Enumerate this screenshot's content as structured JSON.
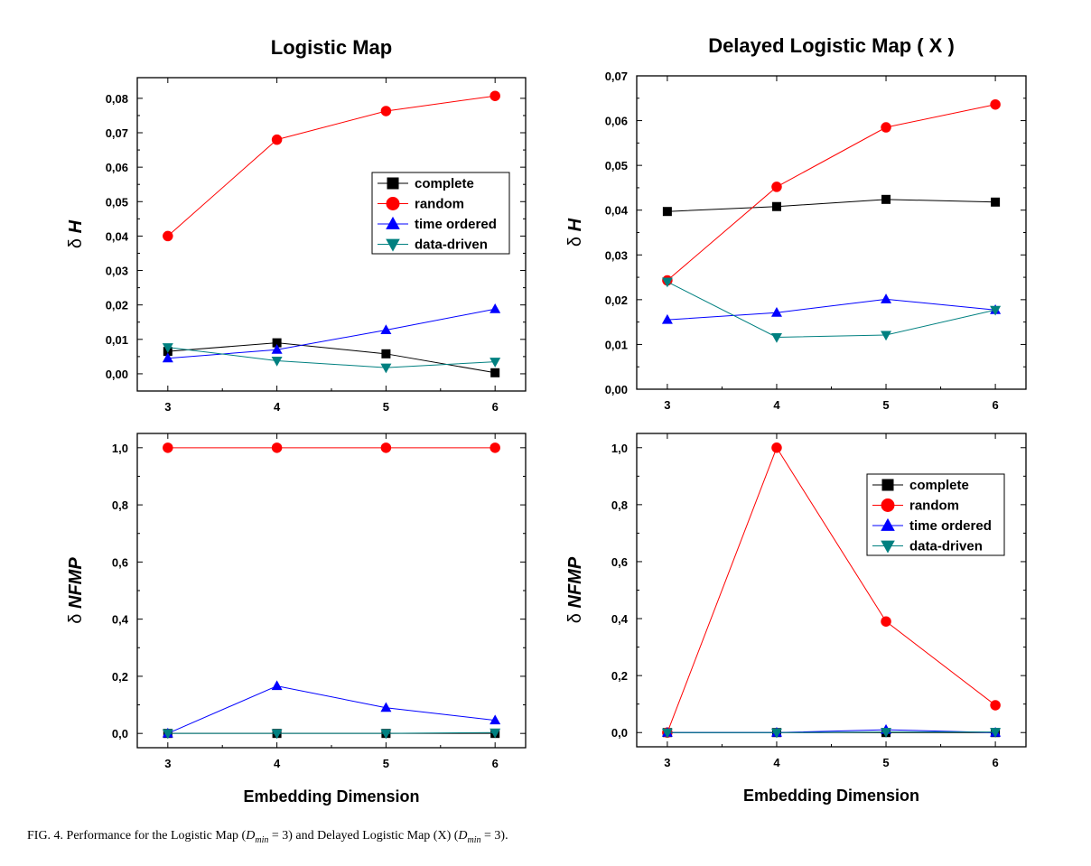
{
  "colors": {
    "complete": "#000000",
    "random": "#ff0000",
    "time_ordered": "#0000ff",
    "data_driven": "#008080"
  },
  "legend_labels": [
    "complete",
    "random",
    "time ordered",
    "data-driven"
  ],
  "chart_data": [
    {
      "id": "tl",
      "type": "line",
      "title": "Logistic Map",
      "xlabel": "",
      "ylabel_symbol": "δ",
      "ylabel_var": "H",
      "x": [
        3,
        4,
        5,
        6
      ],
      "xticks": [
        "3",
        "4",
        "5",
        "6"
      ],
      "ylim": [
        -0.005,
        0.086
      ],
      "yticks": [
        "0,00",
        "0,01",
        "0,02",
        "0,03",
        "0,04",
        "0,05",
        "0,06",
        "0,07",
        "0,08"
      ],
      "ytick_values": [
        0,
        0.01,
        0.02,
        0.03,
        0.04,
        0.05,
        0.06,
        0.07,
        0.08
      ],
      "legend": "center-right",
      "series": [
        {
          "name": "complete",
          "values": [
            0.0065,
            0.009,
            0.0058,
            0.0003
          ]
        },
        {
          "name": "random",
          "values": [
            0.04,
            0.068,
            0.0763,
            0.0807
          ]
        },
        {
          "name": "time ordered",
          "values": [
            0.0045,
            0.007,
            0.0127,
            0.0188
          ]
        },
        {
          "name": "data-driven",
          "values": [
            0.0077,
            0.0038,
            0.0018,
            0.0035
          ]
        }
      ]
    },
    {
      "id": "tr",
      "type": "line",
      "title": "Delayed  Logistic Map  ( X )",
      "xlabel": "",
      "ylabel_symbol": "δ",
      "ylabel_var": "H",
      "x": [
        3,
        4,
        5,
        6
      ],
      "xticks": [
        "3",
        "4",
        "5",
        "6"
      ],
      "ylim": [
        0,
        0.07
      ],
      "yticks": [
        "0,00",
        "0,01",
        "0,02",
        "0,03",
        "0,04",
        "0,05",
        "0,06",
        "0,07"
      ],
      "ytick_values": [
        0,
        0.01,
        0.02,
        0.03,
        0.04,
        0.05,
        0.06,
        0.07
      ],
      "legend": "none",
      "series": [
        {
          "name": "complete",
          "values": [
            0.0397,
            0.0408,
            0.0424,
            0.0418
          ]
        },
        {
          "name": "random",
          "values": [
            0.0243,
            0.0452,
            0.0585,
            0.0636
          ]
        },
        {
          "name": "time ordered",
          "values": [
            0.0155,
            0.0171,
            0.0201,
            0.0177
          ]
        },
        {
          "name": "data-driven",
          "values": [
            0.024,
            0.0116,
            0.0121,
            0.0177
          ]
        }
      ]
    },
    {
      "id": "bl",
      "type": "line",
      "title": "",
      "xlabel": "Embedding  Dimension",
      "ylabel_symbol": "δ",
      "ylabel_var": "NFMP",
      "x": [
        3,
        4,
        5,
        6
      ],
      "xticks": [
        "3",
        "4",
        "5",
        "6"
      ],
      "ylim": [
        -0.05,
        1.05
      ],
      "yticks": [
        "0,0",
        "0,2",
        "0,4",
        "0,6",
        "0,8",
        "1,0"
      ],
      "ytick_values": [
        0,
        0.2,
        0.4,
        0.6,
        0.8,
        1.0
      ],
      "legend": "none",
      "series": [
        {
          "name": "complete",
          "values": [
            0.0,
            0.0,
            0.0,
            0.0
          ]
        },
        {
          "name": "random",
          "values": [
            1.0,
            1.0,
            1.0,
            1.0
          ]
        },
        {
          "name": "time ordered",
          "values": [
            0.0,
            0.166,
            0.09,
            0.046
          ]
        },
        {
          "name": "data-driven",
          "values": [
            0.0,
            0.0,
            0.0,
            0.003
          ]
        }
      ]
    },
    {
      "id": "br",
      "type": "line",
      "title": "",
      "xlabel": "Embedding  Dimension",
      "ylabel_symbol": "δ",
      "ylabel_var": "NFMP",
      "x": [
        3,
        4,
        5,
        6
      ],
      "xticks": [
        "3",
        "4",
        "5",
        "6"
      ],
      "ylim": [
        -0.05,
        1.05
      ],
      "yticks": [
        "0,0",
        "0,2",
        "0,4",
        "0,6",
        "0,8",
        "1,0"
      ],
      "ytick_values": [
        0,
        0.2,
        0.4,
        0.6,
        0.8,
        1.0
      ],
      "legend": "top-right",
      "series": [
        {
          "name": "complete",
          "values": [
            0.0,
            0.0,
            0.0,
            0.0
          ]
        },
        {
          "name": "random",
          "values": [
            0.0,
            1.0,
            0.39,
            0.096
          ]
        },
        {
          "name": "time ordered",
          "values": [
            0.0,
            0.0,
            0.01,
            0.0
          ]
        },
        {
          "name": "data-driven",
          "values": [
            0.0,
            0.0,
            0.002,
            0.002
          ]
        }
      ]
    }
  ],
  "caption": {
    "lead": "FIG. 4.  Performance for the Logistic Map (",
    "d1": "D",
    "sub1": "min",
    "eq1": " = 3) and Delayed Logistic Map (X) (",
    "d2": "D",
    "sub2": "min",
    "eq2": " = 3)."
  }
}
